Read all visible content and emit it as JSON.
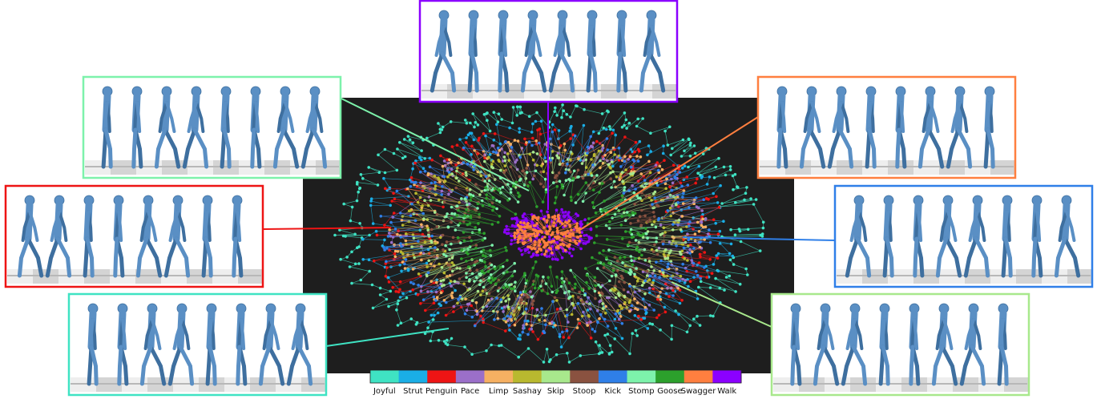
{
  "legend": {
    "items": [
      {
        "label": "Joyful",
        "color": "#3fe3c3"
      },
      {
        "label": "Strut",
        "color": "#1aaee6"
      },
      {
        "label": "Penguin",
        "color": "#ee1414"
      },
      {
        "label": "Pace",
        "color": "#9b6fc9"
      },
      {
        "label": "Limp",
        "color": "#f6b062"
      },
      {
        "label": "Sashay",
        "color": "#b9b92f"
      },
      {
        "label": "Skip",
        "color": "#a8e88c"
      },
      {
        "label": "Stoop",
        "color": "#8a5240"
      },
      {
        "label": "Kick",
        "color": "#2f7fe8"
      },
      {
        "label": "Stomp",
        "color": "#7df2ab"
      },
      {
        "label": "Goose",
        "color": "#2ca02c"
      },
      {
        "label": "Swagger",
        "color": "#ff7f3f"
      },
      {
        "label": "Walk",
        "color": "#8b00ff"
      }
    ]
  }
}
